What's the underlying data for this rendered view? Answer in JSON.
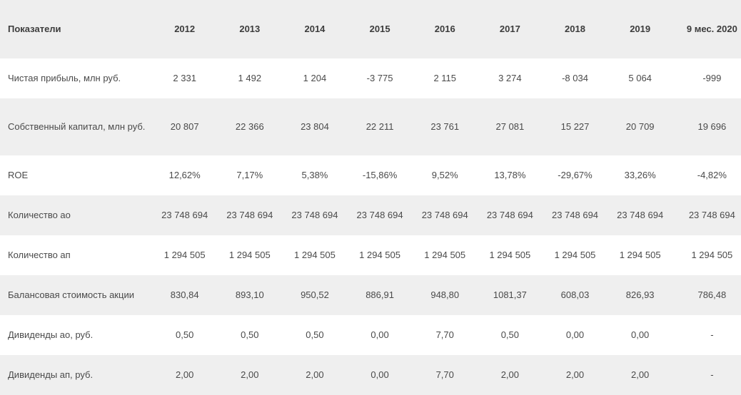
{
  "table": {
    "headers": [
      "Показатели",
      "2012",
      "2013",
      "2014",
      "2015",
      "2016",
      "2017",
      "2018",
      "2019",
      "9 мес. 2020"
    ],
    "rows": [
      {
        "label": "Чистая прибыль, млн руб.",
        "values": [
          "2 331",
          "1 492",
          "1 204",
          "-3 775",
          "2 115",
          "3 274",
          "-8 034",
          "5 064",
          "-999"
        ]
      },
      {
        "label": "Собственный капитал, млн руб.",
        "values": [
          "20 807",
          "22 366",
          "23 804",
          "22 211",
          "23 761",
          "27 081",
          "15 227",
          "20 709",
          "19 696"
        ]
      },
      {
        "label": "ROE",
        "values": [
          "12,62%",
          "7,17%",
          "5,38%",
          "-15,86%",
          "9,52%",
          "13,78%",
          "-29,67%",
          "33,26%",
          "-4,82%"
        ]
      },
      {
        "label": "Количество ао",
        "values": [
          "23 748 694",
          "23 748 694",
          "23 748 694",
          "23 748 694",
          "23 748 694",
          "23 748 694",
          "23 748 694",
          "23 748 694",
          "23 748 694"
        ]
      },
      {
        "label": "Количество ап",
        "values": [
          "1 294 505",
          "1 294 505",
          "1 294 505",
          "1 294 505",
          "1 294 505",
          "1 294 505",
          "1 294 505",
          "1 294 505",
          "1 294 505"
        ]
      },
      {
        "label": "Балансовая стоимость акции",
        "values": [
          "830,84",
          "893,10",
          "950,52",
          "886,91",
          "948,80",
          "1081,37",
          "608,03",
          "826,93",
          "786,48"
        ]
      },
      {
        "label": "Дивиденды ао, руб.",
        "values": [
          "0,50",
          "0,50",
          "0,50",
          "0,00",
          "7,70",
          "0,50",
          "0,00",
          "0,00",
          "-"
        ]
      },
      {
        "label": "Дивиденды ап, руб.",
        "values": [
          "2,00",
          "2,00",
          "2,00",
          "0,00",
          "7,70",
          "2,00",
          "2,00",
          "2,00",
          "-"
        ]
      }
    ]
  }
}
